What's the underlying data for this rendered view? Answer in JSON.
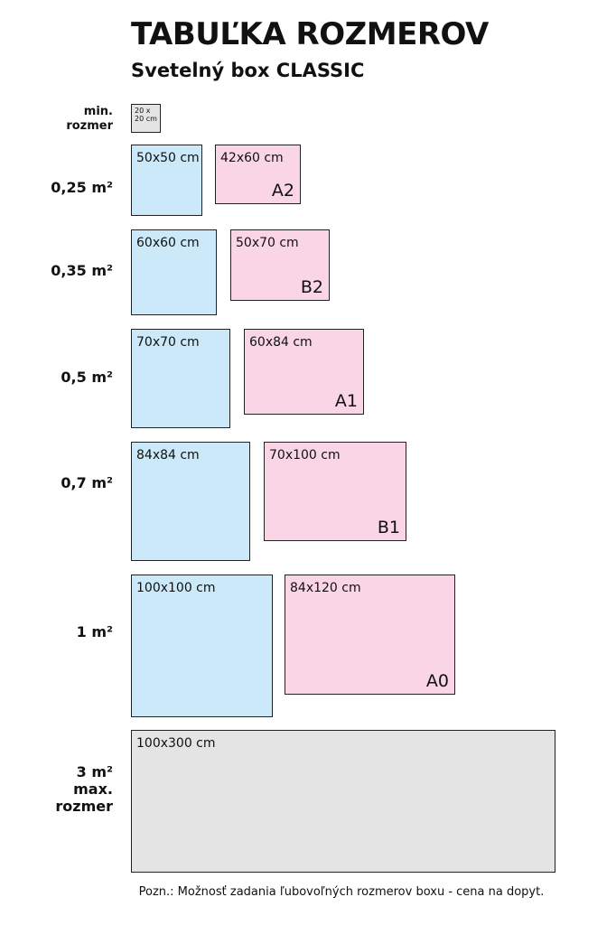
{
  "header": {
    "title": "TABUĽKA ROZMEROV",
    "subtitle": "Svetelný box CLASSIC"
  },
  "min": {
    "label": [
      "min.",
      "rozmer"
    ],
    "box": [
      "20 x",
      "20 cm"
    ]
  },
  "rows": [
    {
      "label": [
        "0,25 m²"
      ],
      "boxes": [
        {
          "size": "50x50 cm"
        },
        {
          "size": "42x60 cm",
          "format": "A2"
        }
      ]
    },
    {
      "label": [
        "0,35 m²"
      ],
      "boxes": [
        {
          "size": "60x60 cm"
        },
        {
          "size": "50x70 cm",
          "format": "B2"
        }
      ]
    },
    {
      "label": [
        "0,5 m²"
      ],
      "boxes": [
        {
          "size": "70x70 cm"
        },
        {
          "size": "60x84 cm",
          "format": "A1"
        }
      ]
    },
    {
      "label": [
        "0,7 m²"
      ],
      "boxes": [
        {
          "size": "84x84 cm"
        },
        {
          "size": "70x100 cm",
          "format": "B1"
        }
      ]
    },
    {
      "label": [
        "1 m²"
      ],
      "boxes": [
        {
          "size": "100x100 cm"
        },
        {
          "size": "84x120 cm",
          "format": "A0"
        }
      ]
    },
    {
      "label": [
        "3 m²",
        "max.",
        "rozmer"
      ],
      "boxes": [
        {
          "size": "100x300 cm"
        }
      ]
    }
  ],
  "note": "Pozn.: Možnosť zadania ľubovoľných rozmerov boxu - cena na dopyt."
}
